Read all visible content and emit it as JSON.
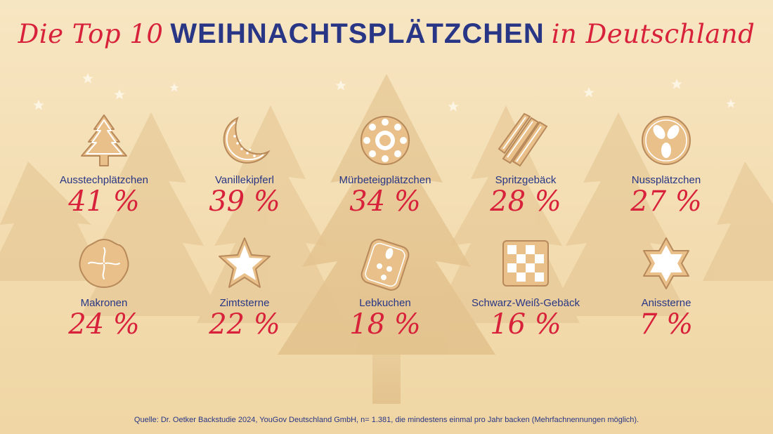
{
  "title": {
    "part1": "Die Top 10",
    "part2": "WEIHNACHTSPLÄTZCHEN",
    "part3": "in Deutschland"
  },
  "items": [
    {
      "label": "Ausstechplätzchen",
      "value": "41 %",
      "icon": "christmas-tree-cookie-icon"
    },
    {
      "label": "Vanillekipferl",
      "value": "39 %",
      "icon": "crescent-cookie-icon"
    },
    {
      "label": "Mürbeteigplätzchen",
      "value": "34 %",
      "icon": "flower-cookie-icon"
    },
    {
      "label": "Spritzgebäck",
      "value": "28 %",
      "icon": "piped-cookie-icon"
    },
    {
      "label": "Nussplätzchen",
      "value": "27 %",
      "icon": "nut-cookie-icon"
    },
    {
      "label": "Makronen",
      "value": "24 %",
      "icon": "macaroon-icon"
    },
    {
      "label": "Zimtsterne",
      "value": "22 %",
      "icon": "cinnamon-star-icon"
    },
    {
      "label": "Lebkuchen",
      "value": "18 %",
      "icon": "gingerbread-icon"
    },
    {
      "label": "Schwarz-Weiß-Gebäck",
      "value": "16 %",
      "icon": "checkerboard-cookie-icon"
    },
    {
      "label": "Anissterne",
      "value": "7 %",
      "icon": "anise-star-icon"
    }
  ],
  "source": "Quelle: Dr. Oetker Backstudie 2024, YouGov Deutschland GmbH, n= 1.381, die mindestens einmal pro Jahr backen (Mehrfachnennungen möglich).",
  "colors": {
    "title_red": "#d8213a",
    "title_blue": "#283685",
    "cookie": "#e9c08a",
    "cookie_edge": "#b8895a"
  }
}
